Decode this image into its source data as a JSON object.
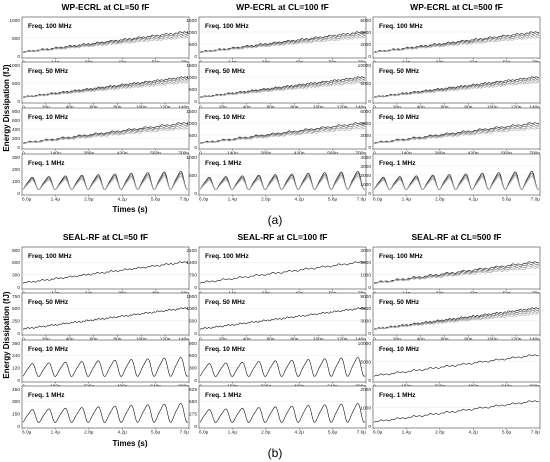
{
  "figure": {
    "sublabel_a": "(a)",
    "sublabel_b": "(b)",
    "ylabel": "Energy Dissipation (fJ)",
    "xlabel": "Times (s)"
  },
  "chart_data": [
    {
      "type": "line",
      "group": "a",
      "title": "WP-ECRL at CL=50 fF",
      "panels": [
        {
          "label": "Freq. 100 MHz",
          "shape": "ramp",
          "n_traces": 4,
          "steps": 12,
          "y_ticks": [
            0,
            500,
            1000
          ],
          "x_ticks": [
            "0",
            "14n",
            "28n",
            "42n",
            "56n",
            "70n"
          ]
        },
        {
          "label": "Freq. 50 MHz",
          "shape": "ramp",
          "n_traces": 4,
          "steps": 14,
          "y_ticks": [
            0,
            500,
            1000
          ],
          "x_ticks": [
            "0",
            "20n",
            "40n",
            "60n",
            "80n",
            "100n",
            "120n",
            "140n"
          ]
        },
        {
          "label": "Freq. 10 MHz",
          "shape": "ramp",
          "n_traces": 4,
          "steps": 10,
          "y_ticks": [
            0,
            200,
            400,
            600,
            800
          ],
          "x_ticks": [
            "0",
            "140n",
            "280n",
            "420n",
            "560n",
            "700n"
          ]
        },
        {
          "label": "Freq. 1 MHz",
          "shape": "osc",
          "n_traces": 4,
          "steps": 10,
          "y_ticks": [
            0,
            100,
            200,
            300
          ],
          "x_ticks": [
            "6.0μ",
            "1.4μ",
            "2.8μ",
            "4.2μ",
            "5.6μ",
            "7.0μ"
          ]
        }
      ]
    },
    {
      "type": "line",
      "group": "a",
      "title": "WP-ECRL at CL=100 fF",
      "panels": [
        {
          "label": "Freq. 100 MHz",
          "shape": "ramp",
          "n_traces": 4,
          "steps": 12,
          "y_ticks": [
            0,
            500,
            1000,
            1500
          ],
          "x_ticks": [
            "0",
            "14n",
            "28n",
            "42n",
            "56n",
            "70n"
          ]
        },
        {
          "label": "Freq. 50 MHz",
          "shape": "ramp",
          "n_traces": 4,
          "steps": 14,
          "y_ticks": [
            0,
            500,
            1000,
            1500
          ],
          "x_ticks": [
            "0",
            "20n",
            "40n",
            "60n",
            "80n",
            "100n",
            "120n",
            "140n"
          ]
        },
        {
          "label": "Freq. 10 MHz",
          "shape": "ramp",
          "n_traces": 4,
          "steps": 10,
          "y_ticks": [
            0,
            500,
            1000,
            1500
          ],
          "x_ticks": [
            "0",
            "140n",
            "280n",
            "420n",
            "560n",
            "700n"
          ]
        },
        {
          "label": "Freq. 1 MHz",
          "shape": "osc",
          "n_traces": 4,
          "steps": 10,
          "y_ticks": [
            0,
            500,
            1000
          ],
          "x_ticks": [
            "6.0μ",
            "1.4μ",
            "2.8μ",
            "4.2μ",
            "5.6μ",
            "7.0μ"
          ]
        }
      ]
    },
    {
      "type": "line",
      "group": "a",
      "title": "WP-ECRL at CL=500 fF",
      "panels": [
        {
          "label": "Freq. 100 MHz",
          "shape": "ramp",
          "n_traces": 4,
          "steps": 12,
          "y_ticks": [
            0,
            2000,
            4000,
            6000
          ],
          "x_ticks": [
            "0",
            "14n",
            "28n",
            "42n",
            "56n",
            "70n"
          ]
        },
        {
          "label": "Freq. 50 MHz",
          "shape": "ramp",
          "n_traces": 4,
          "steps": 14,
          "y_ticks": [
            0,
            5000,
            10000
          ],
          "x_ticks": [
            "0",
            "20n",
            "40n",
            "60n",
            "80n",
            "100n",
            "120n",
            "140n"
          ]
        },
        {
          "label": "Freq. 10 MHz",
          "shape": "ramp",
          "n_traces": 4,
          "steps": 10,
          "y_ticks": [
            0,
            2000,
            4000,
            6000
          ],
          "x_ticks": [
            "0",
            "140n",
            "280n",
            "420n",
            "560n",
            "700n"
          ]
        },
        {
          "label": "Freq. 1 MHz",
          "shape": "osc",
          "n_traces": 4,
          "steps": 10,
          "y_ticks": [
            0,
            1000,
            2000,
            3000,
            4000
          ],
          "x_ticks": [
            "6.0μ",
            "1.4μ",
            "2.8μ",
            "4.2μ",
            "5.6μ",
            "7.0μ"
          ]
        }
      ]
    },
    {
      "type": "line",
      "group": "b",
      "title": "SEAL-RF at CL=50 fF",
      "panels": [
        {
          "label": "Freq. 100 MHz",
          "shape": "ramp",
          "n_traces": 1,
          "steps": 12,
          "y_ticks": [
            0,
            300,
            600,
            900
          ],
          "x_ticks": [
            "0",
            "12n",
            "24n",
            "36n",
            "48n",
            "60n"
          ]
        },
        {
          "label": "Freq. 50 MHz",
          "shape": "ramp",
          "n_traces": 1,
          "steps": 14,
          "y_ticks": [
            0,
            250,
            500,
            750
          ],
          "x_ticks": [
            "0",
            "20n",
            "40n",
            "60n",
            "80n",
            "100n",
            "120n",
            "140n"
          ]
        },
        {
          "label": "Freq. 10 MHz",
          "shape": "osc",
          "n_traces": 1,
          "steps": 10,
          "y_ticks": [
            0,
            120,
            240,
            360
          ],
          "x_ticks": [
            "0",
            "160n",
            "320n",
            "480n",
            "640n",
            "800n"
          ]
        },
        {
          "label": "Freq. 1 MHz",
          "shape": "osc",
          "n_traces": 1,
          "steps": 10,
          "y_ticks": [
            0,
            150,
            300,
            450
          ],
          "x_ticks": [
            "6.0μ",
            "1.4μ",
            "2.8μ",
            "4.2μ",
            "5.6μ",
            "7.0μ"
          ]
        }
      ]
    },
    {
      "type": "line",
      "group": "b",
      "title": "SEAL-RF at CL=100 fF",
      "panels": [
        {
          "label": "Freq. 100 MHz",
          "shape": "ramp",
          "n_traces": 1,
          "steps": 10,
          "y_ticks": [
            0,
            700,
            1400,
            2100
          ],
          "x_ticks": [
            "0",
            "14n",
            "28n",
            "42n",
            "56n",
            "70n"
          ]
        },
        {
          "label": "Freq. 50 MHz",
          "shape": "ramp",
          "n_traces": 1,
          "steps": 14,
          "y_ticks": [
            0,
            500,
            1000,
            1500
          ],
          "x_ticks": [
            "0",
            "20n",
            "40n",
            "60n",
            "80n",
            "100n",
            "120n",
            "140n"
          ]
        },
        {
          "label": "Freq. 10 MHz",
          "shape": "osc",
          "n_traces": 1,
          "steps": 10,
          "y_ticks": [
            0,
            300,
            600,
            900
          ],
          "x_ticks": [
            "0",
            "160n",
            "320n",
            "480n",
            "640n",
            "800n"
          ]
        },
        {
          "label": "Freq. 1 MHz",
          "shape": "osc",
          "n_traces": 1,
          "steps": 10,
          "y_ticks": [
            0,
            275,
            550,
            825
          ],
          "x_ticks": [
            "6.0μ",
            "1.4μ",
            "2.8μ",
            "4.2μ",
            "5.6μ",
            "7.0μ"
          ]
        }
      ]
    },
    {
      "type": "line",
      "group": "b",
      "title": "SEAL-RF at CL=500 fF",
      "panels": [
        {
          "label": "Freq. 100 MHz",
          "shape": "ramp",
          "n_traces": 4,
          "steps": 10,
          "y_ticks": [
            0,
            1000,
            2000,
            3000
          ],
          "x_ticks": [
            "0",
            "14n",
            "28n",
            "42n",
            "56n",
            "70n"
          ]
        },
        {
          "label": "Freq. 50 MHz",
          "shape": "ramp",
          "n_traces": 4,
          "steps": 14,
          "y_ticks": [
            0,
            3000,
            6000,
            9000
          ],
          "x_ticks": [
            "0",
            "20n",
            "40n",
            "60n",
            "80n",
            "100n",
            "120n",
            "140n"
          ]
        },
        {
          "label": "Freq. 10 MHz",
          "shape": "ramp",
          "n_traces": 1,
          "steps": 10,
          "y_ticks": [
            0,
            5000,
            10000
          ],
          "x_ticks": [
            "0",
            "160n",
            "320n",
            "480n",
            "640n",
            "800n"
          ]
        },
        {
          "label": "Freq. 1 MHz",
          "shape": "ramp",
          "n_traces": 1,
          "steps": 10,
          "y_ticks": [
            0,
            1000,
            2000
          ],
          "x_ticks": [
            "6.0μ",
            "1.4μ",
            "2.8μ",
            "4.2μ",
            "5.6μ",
            "7.0μ"
          ]
        }
      ]
    }
  ]
}
